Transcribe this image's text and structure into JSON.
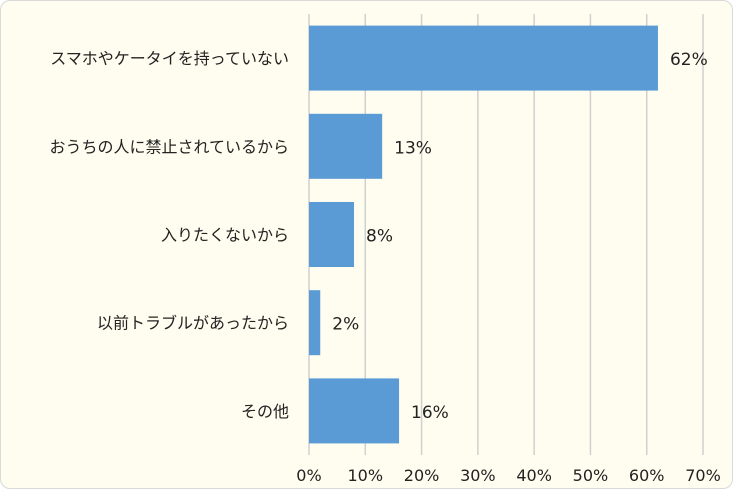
{
  "chart_data": {
    "type": "bar",
    "orientation": "horizontal",
    "categories": [
      "スマホやケータイを持っていない",
      "おうちの人に禁止されているから",
      "入りたくないから",
      "以前トラブルがあったから",
      "その他"
    ],
    "values": [
      62,
      13,
      8,
      2,
      16
    ],
    "data_labels": [
      "62%",
      "13%",
      "8%",
      "2%",
      "16%"
    ],
    "xlim": [
      0,
      70
    ],
    "xticks": [
      0,
      10,
      20,
      30,
      40,
      50,
      60,
      70
    ],
    "xtick_labels": [
      "0%",
      "10%",
      "20%",
      "30%",
      "40%",
      "50%",
      "60%",
      "70%"
    ],
    "grid": "vertical",
    "legend": "none",
    "colors": {
      "bar": "#5b9bd5",
      "grid": "#d0d0d0",
      "background": "#fffdef",
      "border": "#d9d9d9"
    }
  }
}
